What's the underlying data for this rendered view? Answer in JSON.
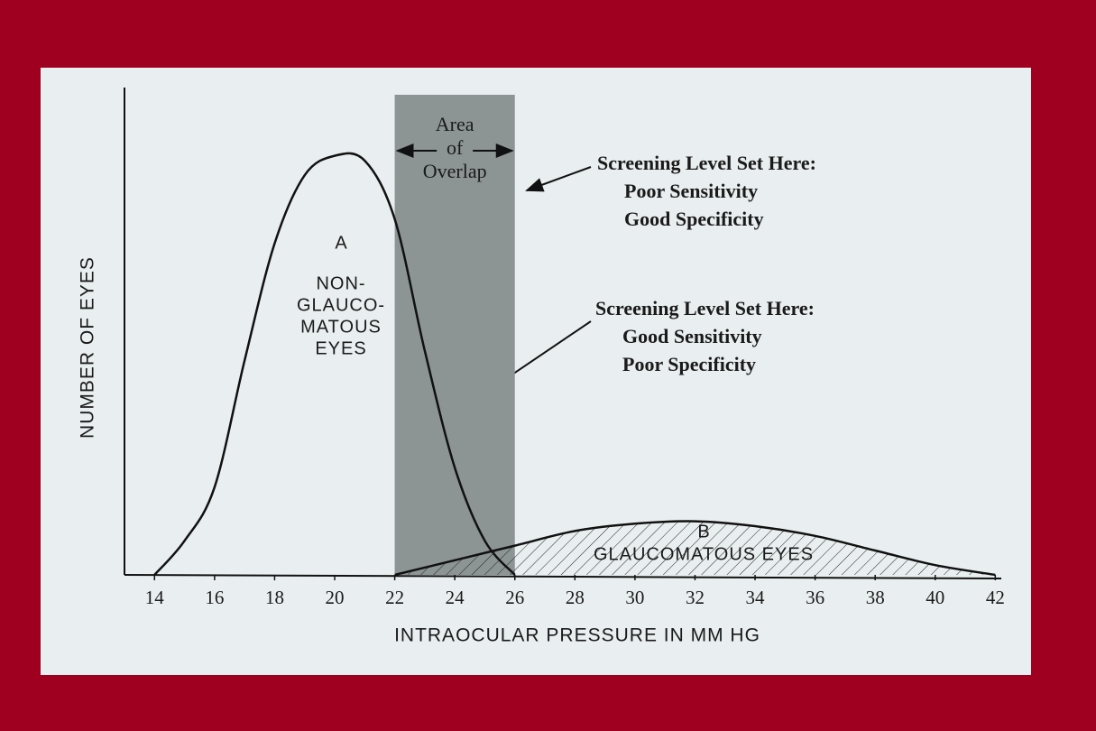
{
  "chart_data": {
    "type": "line",
    "xlabel": "INTRAOCULAR PRESSURE IN MM HG",
    "ylabel": "NUMBER OF EYES",
    "xlim": [
      13,
      42.2
    ],
    "ylim": [
      0,
      100
    ],
    "xticks": [
      14,
      16,
      18,
      20,
      22,
      24,
      26,
      28,
      30,
      32,
      34,
      36,
      38,
      40,
      42
    ],
    "series": [
      {
        "name": "A",
        "label": [
          "NON-",
          "GLAUCO-",
          "MATOUS",
          "EYES"
        ],
        "color": "#111111",
        "hatch": false,
        "x": [
          14,
          15,
          16,
          17,
          18,
          19,
          20,
          21,
          22,
          23,
          24,
          25,
          26
        ],
        "values": [
          0,
          7,
          18,
          44,
          68,
          82,
          86,
          85,
          73,
          46,
          22,
          7,
          0
        ]
      },
      {
        "name": "B",
        "label": [
          "GLAUCOMATOUS EYES"
        ],
        "color": "#111111",
        "hatch": true,
        "x": [
          22,
          24,
          26,
          28,
          30,
          32,
          34,
          36,
          38,
          40,
          42
        ],
        "values": [
          0,
          3,
          6,
          9,
          10.5,
          11,
          10,
          8,
          5,
          2,
          0
        ]
      }
    ],
    "overlap": {
      "x": [
        22,
        26
      ],
      "label": [
        "Area",
        "of",
        "Overlap"
      ],
      "color": "#8c9494"
    },
    "annotations": [
      {
        "lines": [
          "Screening Level Set Here:",
          "Poor Sensitivity",
          "Good Specificity"
        ]
      },
      {
        "lines": [
          "Screening Level Set Here:",
          "Good Sensitivity",
          "Poor Specificity"
        ]
      }
    ]
  }
}
